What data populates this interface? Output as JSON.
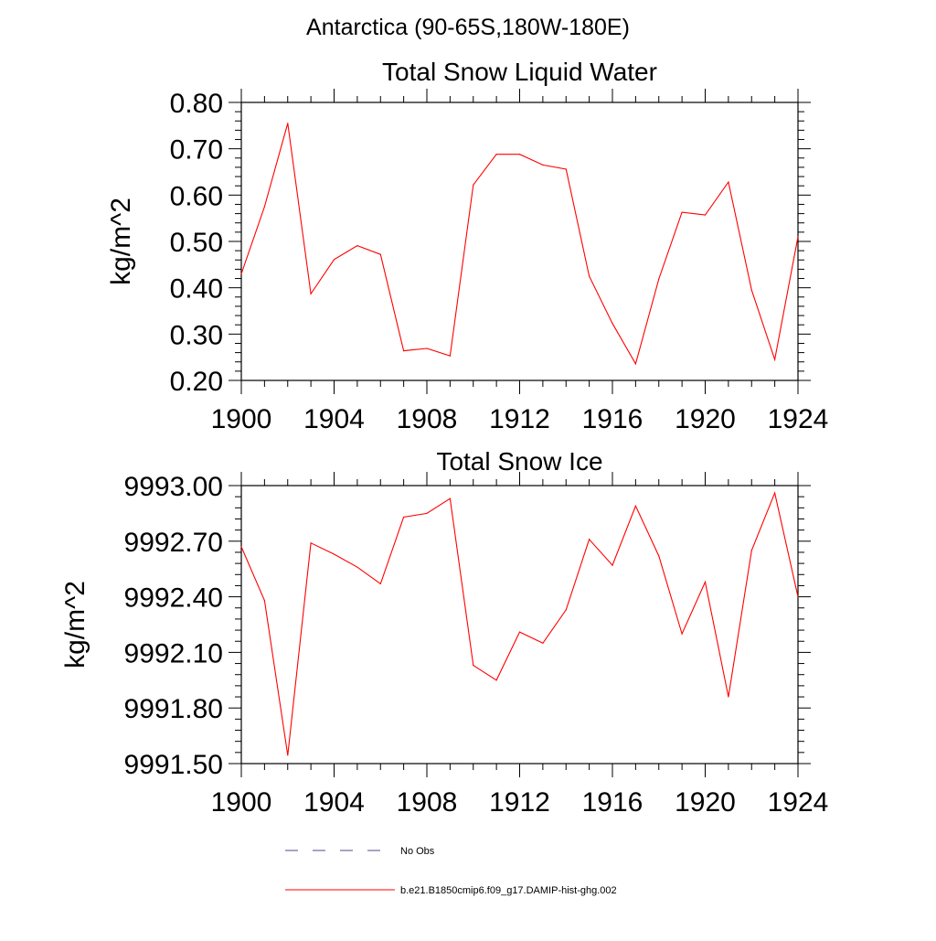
{
  "figure": {
    "suptitle": "Antarctica (90-65S,180W-180E)"
  },
  "chart_data": [
    {
      "type": "line",
      "title": "Total Snow Liquid Water",
      "xlabel": "",
      "ylabel": "kg/m^2",
      "xlim": [
        1900,
        1924
      ],
      "ylim": [
        0.2,
        0.8
      ],
      "xticks": [
        1900,
        1904,
        1908,
        1912,
        1916,
        1920,
        1924
      ],
      "xtick_labels": [
        "1900",
        "1904",
        "1908",
        "1912",
        "1916",
        "1920",
        "1924"
      ],
      "yticks": [
        0.2,
        0.3,
        0.4,
        0.5,
        0.6,
        0.7,
        0.8
      ],
      "ytick_labels": [
        "0.20",
        "0.30",
        "0.40",
        "0.50",
        "0.60",
        "0.70",
        "0.80"
      ],
      "grid": false,
      "series": [
        {
          "name": "b.e21.B1850cmip6.f09_g17.DAMIP-hist-ghg.002",
          "color": "#ff0000",
          "x": [
            1900,
            1901,
            1902,
            1903,
            1904,
            1905,
            1906,
            1907,
            1908,
            1909,
            1910,
            1911,
            1912,
            1913,
            1914,
            1915,
            1916,
            1917,
            1918,
            1919,
            1920,
            1921,
            1922,
            1923,
            1924
          ],
          "y": [
            0.43,
            0.575,
            0.755,
            0.387,
            0.461,
            0.491,
            0.472,
            0.264,
            0.269,
            0.253,
            0.622,
            0.688,
            0.688,
            0.665,
            0.656,
            0.425,
            0.323,
            0.236,
            0.419,
            0.563,
            0.557,
            0.628,
            0.395,
            0.245,
            0.51
          ]
        }
      ]
    },
    {
      "type": "line",
      "title": "Total Snow Ice",
      "xlabel": "",
      "ylabel": "kg/m^2",
      "xlim": [
        1900,
        1924
      ],
      "ylim": [
        9991.5,
        9993.0
      ],
      "xticks": [
        1900,
        1904,
        1908,
        1912,
        1916,
        1920,
        1924
      ],
      "xtick_labels": [
        "1900",
        "1904",
        "1908",
        "1912",
        "1916",
        "1920",
        "1924"
      ],
      "yticks": [
        9991.5,
        9991.8,
        9992.1,
        9992.4,
        9992.7,
        9993.0
      ],
      "ytick_labels": [
        "9991.50",
        "9991.80",
        "9992.10",
        "9992.40",
        "9992.70",
        "9993.00"
      ],
      "grid": false,
      "series": [
        {
          "name": "b.e21.B1850cmip6.f09_g17.DAMIP-hist-ghg.002",
          "color": "#ff0000",
          "x": [
            1900,
            1901,
            1902,
            1903,
            1904,
            1905,
            1906,
            1907,
            1908,
            1909,
            1910,
            1911,
            1912,
            1913,
            1914,
            1915,
            1916,
            1917,
            1918,
            1919,
            1920,
            1921,
            1922,
            1923,
            1924
          ],
          "y": [
            9992.67,
            9992.38,
            9991.545,
            9992.69,
            9992.63,
            9992.56,
            9992.47,
            9992.83,
            9992.85,
            9992.93,
            9992.03,
            9991.95,
            9992.21,
            9992.15,
            9992.33,
            9992.71,
            9992.57,
            9992.89,
            9992.62,
            9992.2,
            9992.48,
            9991.86,
            9992.65,
            9992.96,
            9992.4
          ]
        }
      ]
    }
  ],
  "legend": {
    "items": [
      {
        "label": "No Obs",
        "style": "dashed",
        "color": "#4b4b8f"
      },
      {
        "label": "b.e21.B1850cmip6.f09_g17.DAMIP-hist-ghg.002",
        "style": "solid",
        "color": "#ff0000"
      }
    ]
  }
}
